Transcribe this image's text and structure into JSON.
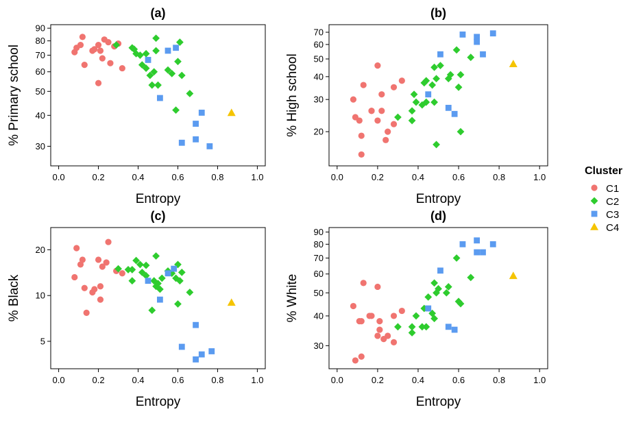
{
  "legend": {
    "title": "Cluster",
    "entries": [
      {
        "label": "C1",
        "color": "#F07470",
        "shape": "circle"
      },
      {
        "label": "C2",
        "color": "#2ECC2E",
        "shape": "diamond"
      },
      {
        "label": "C3",
        "color": "#5B9BF0",
        "shape": "square"
      },
      {
        "label": "C4",
        "color": "#F5C400",
        "shape": "triangle"
      }
    ]
  },
  "chart_data": [
    {
      "type": "scatter",
      "title": "(a)",
      "xlabel": "Entropy",
      "ylabel": "% Primary school",
      "yscale": "log",
      "xlim": [
        -0.04,
        1.04
      ],
      "ylim": [
        25,
        93
      ],
      "xticks": [
        "0.0",
        "0.2",
        "0.4",
        "0.6",
        "0.8",
        "1.0"
      ],
      "yticks": [
        "30",
        "40",
        "50",
        "60",
        "70",
        "80",
        "90"
      ],
      "series": [
        {
          "name": "C1",
          "points": [
            [
              0.08,
              72
            ],
            [
              0.09,
              75
            ],
            [
              0.11,
              77
            ],
            [
              0.12,
              83
            ],
            [
              0.13,
              64
            ],
            [
              0.17,
              73
            ],
            [
              0.18,
              74
            ],
            [
              0.2,
              77
            ],
            [
              0.2,
              54
            ],
            [
              0.21,
              73
            ],
            [
              0.22,
              68
            ],
            [
              0.23,
              81
            ],
            [
              0.25,
              79
            ],
            [
              0.26,
              65
            ],
            [
              0.28,
              76
            ],
            [
              0.3,
              78
            ],
            [
              0.32,
              62
            ]
          ]
        },
        {
          "name": "C2",
          "points": [
            [
              0.29,
              77
            ],
            [
              0.37,
              75
            ],
            [
              0.38,
              74
            ],
            [
              0.39,
              71
            ],
            [
              0.41,
              70
            ],
            [
              0.42,
              64
            ],
            [
              0.44,
              71
            ],
            [
              0.44,
              62
            ],
            [
              0.46,
              58
            ],
            [
              0.47,
              53
            ],
            [
              0.48,
              60
            ],
            [
              0.49,
              82
            ],
            [
              0.49,
              73
            ],
            [
              0.5,
              53
            ],
            [
              0.55,
              61
            ],
            [
              0.57,
              59
            ],
            [
              0.59,
              42
            ],
            [
              0.6,
              66
            ],
            [
              0.61,
              79
            ],
            [
              0.62,
              58
            ],
            [
              0.66,
              49
            ]
          ]
        },
        {
          "name": "C3",
          "points": [
            [
              0.45,
              67
            ],
            [
              0.51,
              47
            ],
            [
              0.55,
              73
            ],
            [
              0.59,
              75
            ],
            [
              0.62,
              31
            ],
            [
              0.69,
              37
            ],
            [
              0.69,
              32
            ],
            [
              0.72,
              41
            ],
            [
              0.76,
              30
            ]
          ]
        },
        {
          "name": "C4",
          "points": [
            [
              0.87,
              41
            ]
          ]
        }
      ]
    },
    {
      "type": "scatter",
      "title": "(b)",
      "xlabel": "Entropy",
      "ylabel": "% High school",
      "yscale": "log",
      "xlim": [
        -0.04,
        1.04
      ],
      "ylim": [
        13,
        77
      ],
      "xticks": [
        "0.0",
        "0.2",
        "0.4",
        "0.6",
        "0.8",
        "1.0"
      ],
      "yticks": [
        "20",
        "30",
        "40",
        "50",
        "60",
        "70"
      ],
      "series": [
        {
          "name": "C1",
          "points": [
            [
              0.08,
              30
            ],
            [
              0.09,
              24
            ],
            [
              0.11,
              23
            ],
            [
              0.12,
              19
            ],
            [
              0.12,
              15
            ],
            [
              0.13,
              36
            ],
            [
              0.17,
              26
            ],
            [
              0.17,
              26
            ],
            [
              0.2,
              46
            ],
            [
              0.2,
              23
            ],
            [
              0.22,
              32
            ],
            [
              0.22,
              26
            ],
            [
              0.24,
              18
            ],
            [
              0.25,
              20
            ],
            [
              0.28,
              35
            ],
            [
              0.28,
              22
            ],
            [
              0.32,
              38
            ]
          ]
        },
        {
          "name": "C2",
          "points": [
            [
              0.3,
              24
            ],
            [
              0.37,
              26
            ],
            [
              0.37,
              23
            ],
            [
              0.38,
              32
            ],
            [
              0.39,
              29
            ],
            [
              0.42,
              28
            ],
            [
              0.43,
              37
            ],
            [
              0.44,
              38
            ],
            [
              0.44,
              29
            ],
            [
              0.47,
              36
            ],
            [
              0.48,
              29
            ],
            [
              0.48,
              45
            ],
            [
              0.49,
              17
            ],
            [
              0.49,
              39
            ],
            [
              0.51,
              46
            ],
            [
              0.55,
              39
            ],
            [
              0.56,
              41
            ],
            [
              0.59,
              56
            ],
            [
              0.6,
              35
            ],
            [
              0.61,
              41
            ],
            [
              0.61,
              20
            ],
            [
              0.66,
              51
            ]
          ]
        },
        {
          "name": "C3",
          "points": [
            [
              0.45,
              32
            ],
            [
              0.51,
              53
            ],
            [
              0.55,
              27
            ],
            [
              0.58,
              25
            ],
            [
              0.62,
              68
            ],
            [
              0.69,
              66
            ],
            [
              0.69,
              62
            ],
            [
              0.72,
              53
            ],
            [
              0.77,
              69
            ]
          ]
        },
        {
          "name": "C4",
          "points": [
            [
              0.87,
              47
            ]
          ]
        }
      ]
    },
    {
      "type": "scatter",
      "title": "(c)",
      "xlabel": "Entropy",
      "ylabel": "% Black",
      "yscale": "log",
      "xlim": [
        -0.04,
        1.04
      ],
      "ylim": [
        3.3,
        28
      ],
      "xticks": [
        "0.0",
        "0.2",
        "0.4",
        "0.6",
        "0.8",
        "1.0"
      ],
      "yticks": [
        "5",
        "10",
        "20"
      ],
      "series": [
        {
          "name": "C1",
          "points": [
            [
              0.08,
              13.2
            ],
            [
              0.09,
              20.5
            ],
            [
              0.11,
              16.0
            ],
            [
              0.12,
              17.2
            ],
            [
              0.13,
              11.2
            ],
            [
              0.14,
              7.7
            ],
            [
              0.17,
              10.5
            ],
            [
              0.18,
              11.0
            ],
            [
              0.2,
              17.2
            ],
            [
              0.21,
              11.5
            ],
            [
              0.21,
              9.4
            ],
            [
              0.22,
              15.5
            ],
            [
              0.24,
              16.5
            ],
            [
              0.25,
              22.5
            ],
            [
              0.29,
              14.5
            ],
            [
              0.32,
              14.0
            ]
          ]
        },
        {
          "name": "C2",
          "points": [
            [
              0.3,
              15.0
            ],
            [
              0.35,
              14.8
            ],
            [
              0.37,
              12.5
            ],
            [
              0.37,
              14.8
            ],
            [
              0.39,
              17.0
            ],
            [
              0.41,
              16.0
            ],
            [
              0.42,
              14.2
            ],
            [
              0.44,
              13.5
            ],
            [
              0.44,
              15.8
            ],
            [
              0.47,
              8.0
            ],
            [
              0.48,
              12.5
            ],
            [
              0.49,
              18.2
            ],
            [
              0.49,
              11.5
            ],
            [
              0.5,
              12.0
            ],
            [
              0.51,
              11.0
            ],
            [
              0.52,
              13.0
            ],
            [
              0.55,
              14.5
            ],
            [
              0.57,
              14.0
            ],
            [
              0.59,
              13.0
            ],
            [
              0.6,
              8.8
            ],
            [
              0.6,
              16.0
            ],
            [
              0.61,
              12.5
            ],
            [
              0.62,
              14.2
            ],
            [
              0.66,
              10.5
            ]
          ]
        },
        {
          "name": "C3",
          "points": [
            [
              0.45,
              12.5
            ],
            [
              0.51,
              9.4
            ],
            [
              0.55,
              14.0
            ],
            [
              0.58,
              15.0
            ],
            [
              0.62,
              4.6
            ],
            [
              0.69,
              6.4
            ],
            [
              0.69,
              3.8
            ],
            [
              0.72,
              4.1
            ],
            [
              0.77,
              4.3
            ]
          ]
        },
        {
          "name": "C4",
          "points": [
            [
              0.87,
              9.0
            ]
          ]
        }
      ]
    },
    {
      "type": "scatter",
      "title": "(d)",
      "xlabel": "Entropy",
      "ylabel": "% White",
      "yscale": "log",
      "xlim": [
        -0.04,
        1.04
      ],
      "ylim": [
        24,
        94
      ],
      "xticks": [
        "0.0",
        "0.2",
        "0.4",
        "0.6",
        "0.8",
        "1.0"
      ],
      "yticks": [
        "30",
        "40",
        "50",
        "60",
        "70",
        "80",
        "90"
      ],
      "series": [
        {
          "name": "C1",
          "points": [
            [
              0.08,
              44
            ],
            [
              0.09,
              26
            ],
            [
              0.11,
              38
            ],
            [
              0.12,
              38
            ],
            [
              0.12,
              27
            ],
            [
              0.13,
              55
            ],
            [
              0.16,
              40
            ],
            [
              0.17,
              40
            ],
            [
              0.2,
              53
            ],
            [
              0.2,
              33
            ],
            [
              0.21,
              35
            ],
            [
              0.21,
              38
            ],
            [
              0.23,
              32
            ],
            [
              0.25,
              33
            ],
            [
              0.28,
              40
            ],
            [
              0.28,
              31
            ],
            [
              0.32,
              42
            ]
          ]
        },
        {
          "name": "C2",
          "points": [
            [
              0.3,
              36
            ],
            [
              0.37,
              34
            ],
            [
              0.37,
              36
            ],
            [
              0.39,
              40
            ],
            [
              0.42,
              36
            ],
            [
              0.43,
              43
            ],
            [
              0.44,
              36
            ],
            [
              0.45,
              48
            ],
            [
              0.47,
              41
            ],
            [
              0.48,
              39
            ],
            [
              0.48,
              55
            ],
            [
              0.49,
              50
            ],
            [
              0.5,
              52
            ],
            [
              0.54,
              50
            ],
            [
              0.55,
              53
            ],
            [
              0.59,
              70
            ],
            [
              0.6,
              46
            ],
            [
              0.61,
              45
            ],
            [
              0.66,
              58
            ]
          ]
        },
        {
          "name": "C3",
          "points": [
            [
              0.45,
              43
            ],
            [
              0.51,
              62
            ],
            [
              0.55,
              36
            ],
            [
              0.58,
              35
            ],
            [
              0.62,
              80
            ],
            [
              0.69,
              83
            ],
            [
              0.69,
              74
            ],
            [
              0.72,
              74
            ],
            [
              0.77,
              80
            ]
          ]
        },
        {
          "name": "C4",
          "points": [
            [
              0.87,
              59
            ]
          ]
        }
      ]
    }
  ]
}
